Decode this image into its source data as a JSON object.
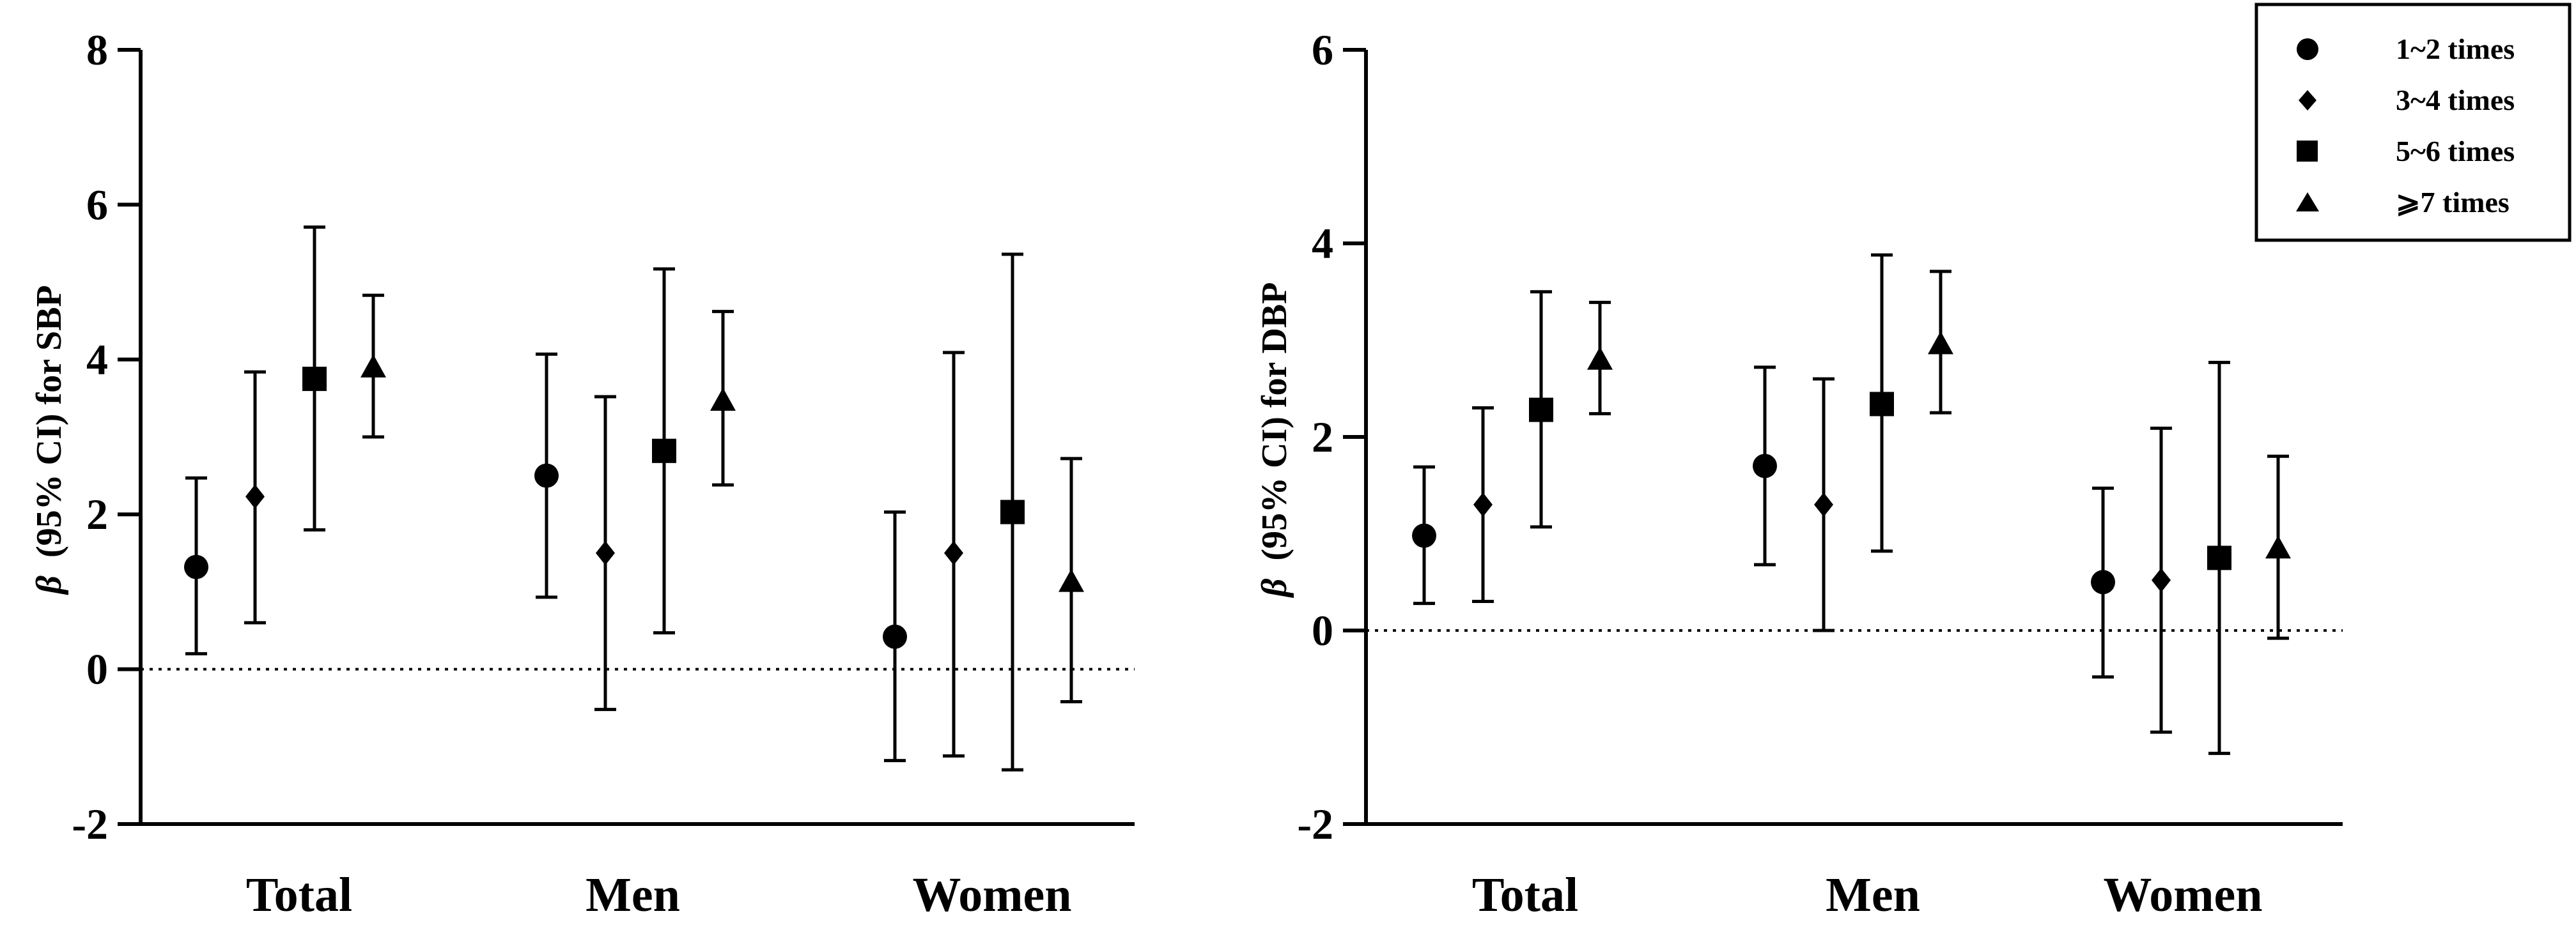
{
  "chart_data": [
    {
      "type": "scatter",
      "subtype": "point-with-error-bars",
      "ylabel_symbol": "β",
      "ylabel": "(95% CI) for SBP",
      "xlabel": "",
      "categories": [
        "Total",
        "Men",
        "Women"
      ],
      "ylim": [
        -2,
        8
      ],
      "yticks": [
        -2,
        0,
        2,
        4,
        6,
        8
      ],
      "ytick_labels": [
        "-2",
        "0",
        "2",
        "4",
        "6",
        "8"
      ],
      "reference_line": 0,
      "series": [
        {
          "name": "1~2 times",
          "marker": "circle",
          "values": [
            1.32,
            2.5,
            0.42
          ],
          "lower": [
            0.2,
            0.93,
            -1.18
          ],
          "upper": [
            2.47,
            4.07,
            2.03
          ]
        },
        {
          "name": "3~4 times",
          "marker": "diamond",
          "values": [
            2.23,
            1.5,
            1.5
          ],
          "lower": [
            0.6,
            -0.52,
            -1.12
          ],
          "upper": [
            3.84,
            3.52,
            4.09
          ]
        },
        {
          "name": "5~6 times",
          "marker": "square",
          "values": [
            3.75,
            2.82,
            2.03
          ],
          "lower": [
            1.8,
            0.47,
            -1.3
          ],
          "upper": [
            5.71,
            5.17,
            5.36
          ]
        },
        {
          "name": "≥7 times",
          "marker": "triangle",
          "values": [
            3.9,
            3.47,
            1.13
          ],
          "lower": [
            3.0,
            2.38,
            -0.42
          ],
          "upper": [
            4.83,
            4.62,
            2.72
          ]
        }
      ]
    },
    {
      "type": "scatter",
      "subtype": "point-with-error-bars",
      "ylabel_symbol": "β",
      "ylabel": "(95% CI) for DBP",
      "xlabel": "",
      "categories": [
        "Total",
        "Men",
        "Women"
      ],
      "ylim": [
        -2,
        6
      ],
      "yticks": [
        -2,
        0,
        2,
        4,
        6
      ],
      "ytick_labels": [
        "-2",
        "0",
        "2",
        "4",
        "6"
      ],
      "reference_line": 0,
      "series": [
        {
          "name": "1~2 times",
          "marker": "circle",
          "values": [
            0.98,
            1.7,
            0.5
          ],
          "lower": [
            0.28,
            0.68,
            -0.48
          ],
          "upper": [
            1.69,
            2.72,
            1.47
          ]
        },
        {
          "name": "3~4 times",
          "marker": "diamond",
          "values": [
            1.3,
            1.3,
            0.52
          ],
          "lower": [
            0.3,
            0.0,
            -1.05
          ],
          "upper": [
            2.3,
            2.6,
            2.09
          ]
        },
        {
          "name": "5~6 times",
          "marker": "square",
          "values": [
            2.28,
            2.34,
            0.75
          ],
          "lower": [
            1.07,
            0.82,
            -1.27
          ],
          "upper": [
            3.5,
            3.88,
            2.77
          ]
        },
        {
          "name": "≥7 times",
          "marker": "triangle",
          "values": [
            2.8,
            2.96,
            0.85
          ],
          "lower": [
            2.24,
            2.25,
            -0.08
          ],
          "upper": [
            3.39,
            3.71,
            1.8
          ]
        }
      ]
    }
  ],
  "legend": {
    "placement": "top-right of right panel",
    "items": [
      {
        "label": "1~2 times",
        "marker": "circle"
      },
      {
        "label": "3~4 times",
        "marker": "diamond"
      },
      {
        "label": "5~6 times",
        "marker": "square"
      },
      {
        "label": "⩾7 times",
        "marker": "triangle"
      }
    ]
  },
  "colors": {
    "ink": "#000000",
    "background": "#ffffff"
  }
}
